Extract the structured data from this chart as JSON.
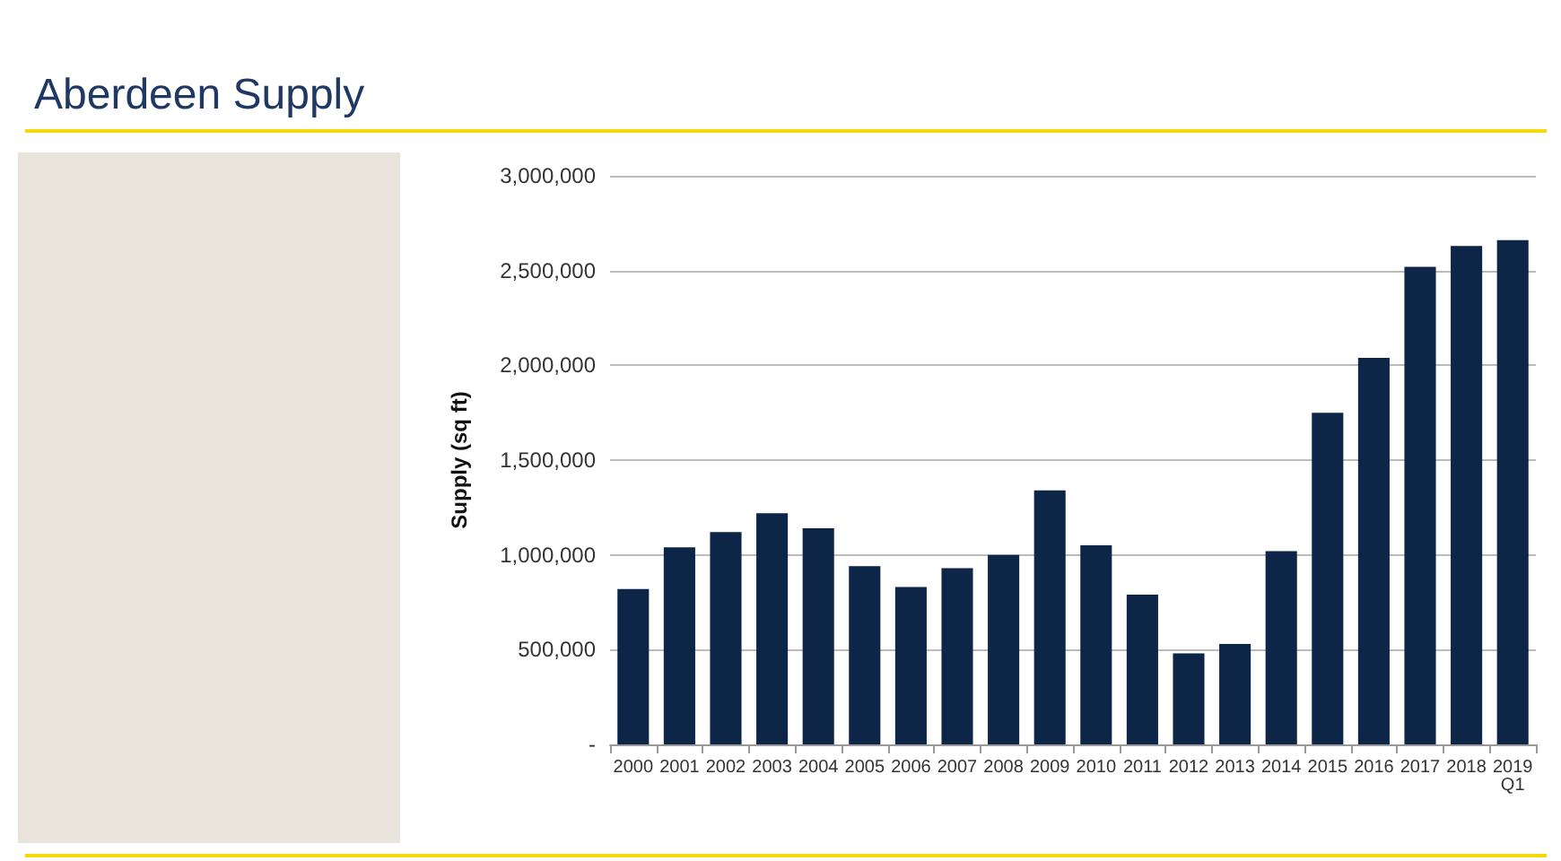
{
  "chart_data": {
    "type": "bar",
    "title": "Aberdeen Supply",
    "ylabel": "Supply (sq ft)",
    "categories": [
      "2000",
      "2001",
      "2002",
      "2003",
      "2004",
      "2005",
      "2006",
      "2007",
      "2008",
      "2009",
      "2010",
      "2011",
      "2012",
      "2013",
      "2014",
      "2015",
      "2016",
      "2017",
      "2018",
      "2019\nQ1"
    ],
    "values": [
      820000,
      1040000,
      1120000,
      1220000,
      1140000,
      940000,
      830000,
      930000,
      1000000,
      1340000,
      1050000,
      790000,
      480000,
      530000,
      1020000,
      1750000,
      2040000,
      2520000,
      2630000,
      2660000
    ],
    "color": "#0d2547",
    "ylim": [
      0,
      3000000
    ],
    "yticks": [
      {
        "value": 0,
        "label": "-"
      },
      {
        "value": 500000,
        "label": "500,000"
      },
      {
        "value": 1000000,
        "label": "1,000,000"
      },
      {
        "value": 1500000,
        "label": "1,500,000"
      },
      {
        "value": 2000000,
        "label": "2,000,000"
      },
      {
        "value": 2500000,
        "label": "2,500,000"
      },
      {
        "value": 3000000,
        "label": "3,000,000"
      }
    ],
    "grid": "y"
  }
}
